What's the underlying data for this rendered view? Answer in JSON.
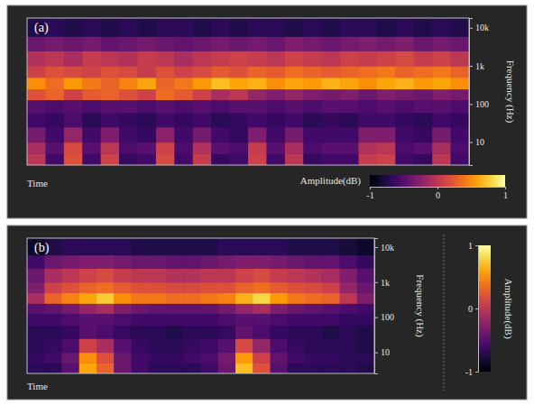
{
  "chart_data": [
    {
      "type": "heatmap",
      "title": "(a)",
      "xlabel": "Time",
      "ylabel": "Frequency (Hz)",
      "log": "y",
      "tick_labels": "y",
      "ylim": [
        2.5,
        18000
      ],
      "yticks": [
        10,
        100,
        {
          "value": 1000,
          "label": "1k"
        },
        {
          "value": 10000,
          "label": "10k"
        }
      ],
      "y_bins": [
        2.5,
        5,
        10,
        25,
        60,
        130,
        250,
        500,
        1000,
        2500,
        6000,
        18000
      ],
      "cells": [
        [
          0.0,
          -0.6,
          0.2,
          -0.6,
          0.1,
          -0.65,
          -0.6,
          0.15,
          -0.6,
          0.05,
          -0.65,
          -0.6,
          0.1,
          -0.6,
          0.0,
          -0.65,
          -0.6,
          -0.6,
          0.05,
          0.1,
          -0.6,
          -0.65,
          0.0,
          -0.6
        ],
        [
          -0.1,
          -0.5,
          0.15,
          -0.5,
          0.0,
          -0.55,
          -0.5,
          0.1,
          -0.55,
          -0.05,
          -0.5,
          -0.55,
          0.05,
          -0.5,
          -0.1,
          -0.55,
          -0.5,
          -0.5,
          -0.05,
          0.0,
          -0.55,
          -0.5,
          -0.1,
          -0.55
        ],
        [
          -0.35,
          -0.6,
          -0.2,
          -0.6,
          -0.3,
          -0.6,
          -0.65,
          -0.25,
          -0.6,
          -0.35,
          -0.6,
          -0.65,
          -0.3,
          -0.6,
          -0.35,
          -0.6,
          -0.6,
          -0.6,
          -0.3,
          -0.3,
          -0.6,
          -0.65,
          -0.35,
          -0.6
        ],
        [
          -0.6,
          -0.65,
          -0.55,
          -0.7,
          -0.6,
          -0.65,
          -0.7,
          -0.6,
          -0.65,
          -0.6,
          -0.7,
          -0.65,
          -0.6,
          -0.65,
          -0.6,
          -0.7,
          -0.65,
          -0.7,
          -0.6,
          -0.6,
          -0.65,
          -0.7,
          -0.6,
          -0.65
        ],
        [
          -0.5,
          -0.55,
          -0.5,
          -0.55,
          -0.5,
          -0.5,
          -0.55,
          -0.5,
          -0.55,
          -0.5,
          -0.55,
          -0.5,
          -0.5,
          -0.55,
          -0.5,
          -0.55,
          -0.5,
          -0.5,
          -0.55,
          -0.5,
          -0.55,
          -0.5,
          -0.5,
          -0.55
        ],
        [
          0.2,
          0.3,
          0.1,
          0.25,
          0.3,
          0.2,
          0.1,
          0.35,
          0.25,
          0.1,
          -0.1,
          0.0,
          -0.2,
          -0.3,
          -0.2,
          -0.3,
          -0.35,
          -0.3,
          -0.4,
          -0.3,
          -0.35,
          -0.4,
          -0.3,
          -0.35
        ],
        [
          0.5,
          0.35,
          0.55,
          0.4,
          0.3,
          0.45,
          0.6,
          0.3,
          0.4,
          0.55,
          0.7,
          0.6,
          0.65,
          0.5,
          0.6,
          0.55,
          0.65,
          0.6,
          0.5,
          0.6,
          0.65,
          0.55,
          0.6,
          0.5
        ],
        [
          0.1,
          0.2,
          0.15,
          0.1,
          0.2,
          0.15,
          0.05,
          0.2,
          0.1,
          0.15,
          0.25,
          0.2,
          0.3,
          0.25,
          0.35,
          0.3,
          0.25,
          0.3,
          0.35,
          0.4,
          0.3,
          0.35,
          0.4,
          0.3
        ],
        [
          -0.05,
          0.0,
          -0.1,
          0.05,
          0.0,
          -0.05,
          0.05,
          0.0,
          -0.1,
          0.0,
          0.05,
          0.1,
          0.05,
          0.0,
          0.1,
          0.05,
          0.0,
          0.1,
          0.05,
          0.1,
          0.15,
          0.05,
          0.1,
          0.0
        ],
        [
          -0.4,
          -0.35,
          -0.4,
          -0.35,
          -0.45,
          -0.4,
          -0.35,
          -0.4,
          -0.45,
          -0.4,
          -0.35,
          -0.4,
          -0.35,
          -0.4,
          -0.3,
          -0.35,
          -0.4,
          -0.35,
          -0.3,
          -0.35,
          -0.3,
          -0.4,
          -0.35,
          -0.4
        ],
        [
          -0.75,
          -0.7,
          -0.75,
          -0.7,
          -0.75,
          -0.7,
          -0.75,
          -0.7,
          -0.7,
          -0.75,
          -0.7,
          -0.75,
          -0.7,
          -0.7,
          -0.75,
          -0.7,
          -0.75,
          -0.7,
          -0.7,
          -0.75,
          -0.7,
          -0.75,
          -0.7,
          -0.75
        ]
      ],
      "colorbar": {
        "label": "Amplitude(dB)",
        "range": [
          -1,
          1
        ],
        "ticks": [
          -1,
          0,
          1
        ]
      }
    },
    {
      "type": "heatmap",
      "title": "(b)",
      "xlabel": "Time",
      "ylabel": "Frequency (Hz)",
      "log": "y",
      "tick_labels": "y",
      "ylim": [
        2.5,
        18000
      ],
      "yticks": [
        10,
        100,
        {
          "value": 1000,
          "label": "1k"
        },
        {
          "value": 10000,
          "label": "10k"
        }
      ],
      "y_bins": [
        2.5,
        5,
        10,
        25,
        60,
        130,
        250,
        500,
        1000,
        2500,
        6000,
        18000
      ],
      "cells": [
        [
          -0.7,
          -0.7,
          -0.5,
          0.6,
          0.3,
          -0.4,
          -0.6,
          -0.7,
          -0.7,
          -0.7,
          -0.6,
          -0.4,
          0.7,
          0.2,
          -0.5,
          -0.7,
          -0.7,
          -0.7,
          -0.7,
          -0.75
        ],
        [
          -0.65,
          -0.6,
          -0.4,
          0.5,
          0.2,
          -0.4,
          -0.6,
          -0.65,
          -0.65,
          -0.6,
          -0.55,
          -0.35,
          0.55,
          0.1,
          -0.45,
          -0.6,
          -0.65,
          -0.65,
          -0.7,
          -0.7
        ],
        [
          -0.7,
          -0.65,
          -0.55,
          0.1,
          -0.1,
          -0.5,
          -0.65,
          -0.7,
          -0.7,
          -0.65,
          -0.6,
          -0.5,
          0.15,
          -0.2,
          -0.55,
          -0.65,
          -0.7,
          -0.7,
          -0.7,
          -0.75
        ],
        [
          -0.7,
          -0.7,
          -0.65,
          -0.5,
          -0.55,
          -0.65,
          -0.7,
          -0.7,
          -0.75,
          -0.7,
          -0.7,
          -0.65,
          -0.45,
          -0.55,
          -0.65,
          -0.7,
          -0.7,
          -0.75,
          -0.7,
          -0.75
        ],
        [
          -0.6,
          -0.6,
          -0.55,
          -0.5,
          -0.5,
          -0.55,
          -0.6,
          -0.6,
          -0.6,
          -0.6,
          -0.6,
          -0.55,
          -0.5,
          -0.5,
          -0.55,
          -0.6,
          -0.6,
          -0.6,
          -0.65,
          -0.65
        ],
        [
          -0.5,
          -0.45,
          -0.35,
          -0.2,
          -0.1,
          -0.3,
          -0.4,
          -0.45,
          -0.45,
          -0.45,
          -0.45,
          -0.35,
          -0.2,
          -0.1,
          -0.3,
          -0.4,
          -0.45,
          -0.5,
          -0.55,
          -0.6
        ],
        [
          -0.1,
          0.3,
          0.45,
          0.6,
          0.75,
          0.5,
          0.4,
          0.4,
          0.35,
          0.35,
          0.4,
          0.45,
          0.65,
          0.8,
          0.55,
          0.4,
          0.35,
          0.3,
          0.0,
          -0.3
        ],
        [
          -0.3,
          0.1,
          0.2,
          0.3,
          0.35,
          0.25,
          0.2,
          0.2,
          0.15,
          0.15,
          0.2,
          0.2,
          0.3,
          0.35,
          0.25,
          0.2,
          0.15,
          0.1,
          -0.2,
          -0.4
        ],
        [
          -0.4,
          -0.1,
          0.0,
          0.1,
          0.15,
          0.05,
          0.0,
          0.0,
          -0.05,
          -0.05,
          0.0,
          0.0,
          0.1,
          0.15,
          0.05,
          0.0,
          -0.05,
          -0.1,
          -0.3,
          -0.5
        ],
        [
          -0.6,
          -0.4,
          -0.35,
          -0.3,
          -0.3,
          -0.35,
          -0.4,
          -0.4,
          -0.45,
          -0.45,
          -0.4,
          -0.35,
          -0.3,
          -0.3,
          -0.35,
          -0.4,
          -0.45,
          -0.45,
          -0.55,
          -0.65
        ],
        [
          -0.85,
          -0.75,
          -0.7,
          -0.7,
          -0.7,
          -0.7,
          -0.75,
          -0.75,
          -0.75,
          -0.75,
          -0.75,
          -0.7,
          -0.7,
          -0.7,
          -0.7,
          -0.75,
          -0.75,
          -0.75,
          -0.8,
          -0.85
        ]
      ],
      "colorbar": {
        "label": "Amplitude(dB)",
        "range": [
          -1,
          1
        ],
        "ticks": [
          1,
          0,
          -1
        ]
      }
    }
  ]
}
